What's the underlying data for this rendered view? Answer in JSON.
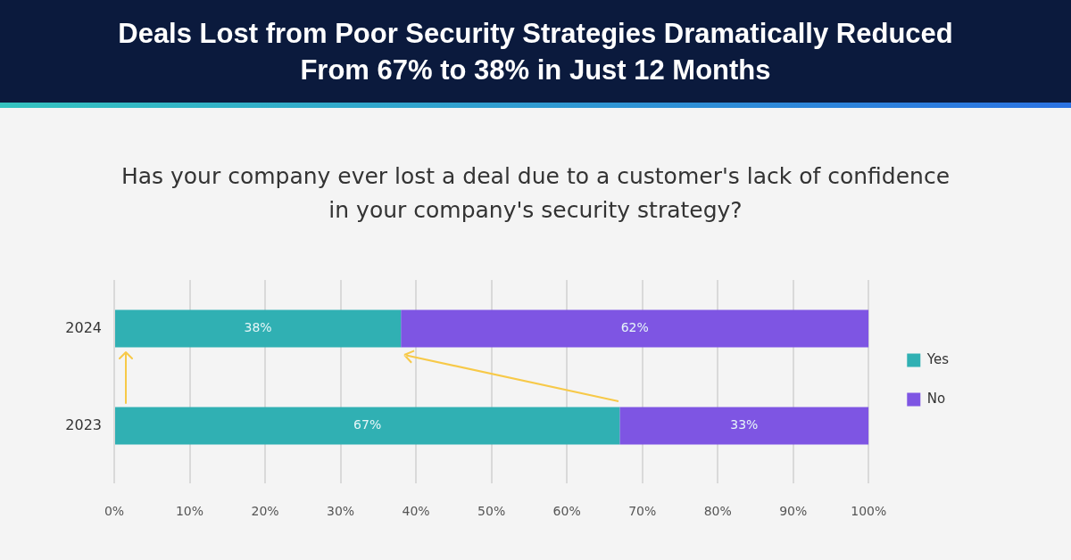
{
  "chart_data": {
    "type": "bar",
    "orientation": "horizontal",
    "stacked": true,
    "title": "Deals Lost from Poor Security Strategies Dramatically Reduced\nFrom 67% to 38% in Just 12 Months",
    "subtitle": "Has your company ever lost a deal due to a customer's lack of confidence\nin your company's security strategy?",
    "categories": [
      "2024",
      "2023"
    ],
    "series": [
      {
        "name": "Yes",
        "color": "#30b0b3",
        "values": [
          38,
          67
        ],
        "value_labels": [
          "38%",
          "67%"
        ]
      },
      {
        "name": "No",
        "color": "#7e55e3",
        "values": [
          62,
          33
        ],
        "value_labels": [
          "62%",
          "33%"
        ]
      }
    ],
    "xlim": [
      0,
      100
    ],
    "xticks": [
      {
        "value": 0,
        "label": "0%"
      },
      {
        "value": 10,
        "label": "10%"
      },
      {
        "value": 20,
        "label": "20%"
      },
      {
        "value": 30,
        "label": "30%"
      },
      {
        "value": 40,
        "label": "40%"
      },
      {
        "value": 50,
        "label": "50%"
      },
      {
        "value": 60,
        "label": "60%"
      },
      {
        "value": 70,
        "label": "70%"
      },
      {
        "value": 80,
        "label": "80%"
      },
      {
        "value": 90,
        "label": "90%"
      },
      {
        "value": 100,
        "label": "100%"
      }
    ],
    "grid": "x",
    "legend": "right"
  }
}
